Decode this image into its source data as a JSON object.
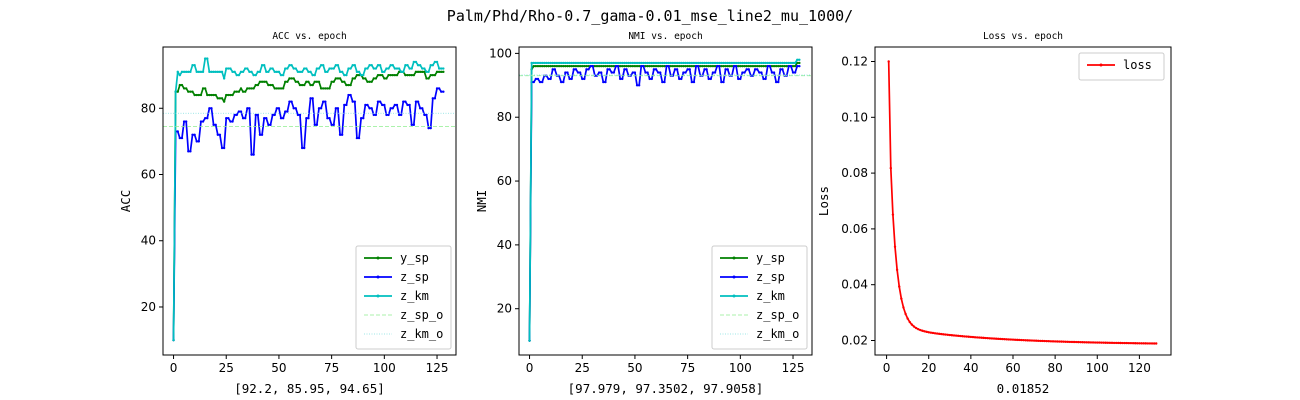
{
  "figure": {
    "suptitle": "Palm/Phd/Rho-0.7_gama-0.01_mse_line2_mu_1000/"
  },
  "colors": {
    "y_sp": "#008000",
    "z_sp": "#0000ff",
    "z_km": "#00bfbf",
    "z_sp_o": "#90ee90",
    "z_km_o": "#7fdfdf",
    "loss": "#ff0000"
  },
  "chart_data": [
    {
      "type": "line",
      "title": "ACC vs. epoch",
      "xlabel": "[92.2, 85.95, 94.65]",
      "ylabel": "ACC",
      "xlim": [
        -5,
        134
      ],
      "ylim": [
        5.5,
        98.5
      ],
      "xticks": [
        0,
        25,
        50,
        75,
        100,
        125
      ],
      "yticks": [
        20,
        40,
        60,
        80
      ],
      "legend_position": "lower-right",
      "grid": false,
      "x_start": 0,
      "series": [
        {
          "name": "y_sp",
          "key": "y_sp",
          "style": "solid-markers",
          "values": [
            10,
            85,
            85,
            87,
            87,
            86,
            86,
            85,
            85,
            85,
            84,
            84,
            84,
            84,
            86,
            86,
            84,
            84,
            84,
            84,
            84,
            83,
            83,
            83,
            82,
            84,
            84,
            84,
            84,
            85,
            85,
            85,
            86,
            85,
            85,
            86,
            86,
            86,
            86,
            87,
            87,
            88,
            88,
            88,
            88,
            87,
            87,
            87,
            86,
            86,
            86,
            86,
            86,
            88,
            88,
            89,
            89,
            89,
            88,
            88,
            87,
            87,
            87,
            88,
            88,
            87,
            87,
            88,
            88,
            88,
            86,
            86,
            86,
            86,
            86,
            88,
            88,
            89,
            89,
            89,
            88,
            88,
            87,
            87,
            87,
            89,
            89,
            90,
            90,
            90,
            89,
            89,
            88,
            88,
            88,
            89,
            89,
            90,
            90,
            90,
            89,
            89,
            90,
            90,
            90,
            90,
            90,
            91,
            91,
            91,
            90,
            90,
            90,
            90,
            90,
            91,
            91,
            91,
            91,
            91,
            89,
            89,
            90,
            90,
            90,
            91,
            91,
            91,
            91
          ]
        },
        {
          "name": "z_sp",
          "key": "z_sp",
          "style": "solid-markers",
          "values": [
            10,
            73,
            73,
            71,
            71,
            76,
            76,
            67,
            67,
            72,
            72,
            70,
            70,
            76,
            76,
            77,
            77,
            80,
            80,
            75,
            75,
            72,
            72,
            68,
            68,
            77,
            77,
            76,
            76,
            78,
            78,
            79,
            79,
            77,
            77,
            80,
            80,
            66,
            66,
            78,
            78,
            72,
            72,
            77,
            77,
            75,
            75,
            78,
            78,
            80,
            80,
            77,
            77,
            79,
            79,
            82,
            82,
            80,
            80,
            78,
            78,
            68,
            68,
            77,
            77,
            83,
            83,
            75,
            75,
            80,
            80,
            82,
            82,
            77,
            77,
            75,
            75,
            80,
            80,
            72,
            72,
            81,
            81,
            84,
            84,
            82,
            82,
            71,
            71,
            77,
            77,
            81,
            81,
            80,
            80,
            78,
            78,
            82,
            82,
            81,
            81,
            78,
            78,
            80,
            80,
            81,
            81,
            78,
            78,
            82,
            82,
            81,
            81,
            75,
            75,
            82,
            82,
            80,
            80,
            78,
            78,
            74,
            74,
            83,
            83,
            86,
            86,
            85,
            85
          ]
        },
        {
          "name": "z_km",
          "key": "z_km",
          "style": "solid-markers",
          "values": [
            10,
            85,
            91,
            90,
            91,
            91,
            91,
            91,
            91,
            93,
            93,
            91,
            91,
            91,
            91,
            95,
            95,
            91,
            91,
            91,
            91,
            91,
            91,
            91,
            89,
            92,
            92,
            92,
            91,
            91,
            90,
            90,
            91,
            91,
            92,
            92,
            91,
            91,
            90,
            90,
            91,
            91,
            93,
            93,
            91,
            91,
            92,
            92,
            91,
            91,
            91,
            90,
            90,
            92,
            92,
            93,
            93,
            92,
            92,
            91,
            91,
            91,
            92,
            92,
            91,
            91,
            90,
            90,
            92,
            92,
            93,
            93,
            91,
            91,
            92,
            92,
            92,
            93,
            93,
            91,
            91,
            90,
            90,
            92,
            92,
            93,
            93,
            91,
            91,
            90,
            90,
            92,
            92,
            93,
            93,
            92,
            92,
            93,
            93,
            91,
            91,
            92,
            92,
            93,
            93,
            92,
            92,
            92,
            91,
            91,
            93,
            93,
            92,
            92,
            94,
            94,
            93,
            93,
            92,
            92,
            91,
            91,
            93,
            93,
            94,
            94,
            92,
            92,
            92
          ]
        },
        {
          "name": "z_sp_o",
          "key": "z_sp_o",
          "style": "dashed",
          "constant": 74.5
        },
        {
          "name": "z_km_o",
          "key": "z_km_o",
          "style": "dotted",
          "constant": 78.5
        }
      ]
    },
    {
      "type": "line",
      "title": "NMI vs. epoch",
      "xlabel": "[97.979, 97.3502, 97.9058]",
      "ylabel": "NMI",
      "xlim": [
        -5,
        134
      ],
      "ylim": [
        5.5,
        102
      ],
      "xticks": [
        0,
        25,
        50,
        75,
        100,
        125
      ],
      "yticks": [
        20,
        40,
        60,
        80,
        100
      ],
      "legend_position": "lower-right",
      "grid": false,
      "x_start": 0,
      "series": [
        {
          "name": "y_sp",
          "key": "y_sp",
          "style": "solid-markers",
          "values": [
            10,
            95,
            96,
            96,
            96,
            96,
            96,
            96,
            96,
            96,
            96,
            96,
            96,
            96,
            96,
            96,
            96,
            96,
            96,
            96,
            96,
            96,
            96,
            96,
            96,
            96,
            96,
            96,
            96,
            96,
            96,
            96,
            96,
            96,
            96,
            96,
            96,
            96,
            96,
            96,
            96,
            96,
            96,
            96,
            96,
            96,
            96,
            96,
            96,
            96,
            96,
            96,
            96,
            96,
            96,
            96,
            96,
            96,
            96,
            96,
            96,
            96,
            96,
            96,
            96,
            96,
            96,
            96,
            96,
            96,
            96,
            96,
            96,
            96,
            96,
            96,
            96,
            96,
            96,
            96,
            96,
            96,
            96,
            96,
            96,
            96,
            96,
            96,
            96,
            96,
            96,
            96,
            96,
            96,
            96,
            96,
            96,
            96,
            96,
            96,
            96,
            96,
            96,
            96,
            96,
            96,
            96,
            96,
            96,
            96,
            96,
            96,
            96,
            96,
            96,
            96,
            96,
            96,
            96,
            96,
            96,
            96,
            96,
            96,
            96,
            96,
            96,
            97,
            97
          ]
        },
        {
          "name": "z_sp",
          "key": "z_sp",
          "style": "solid-markers",
          "values": [
            10,
            91,
            91,
            92,
            92,
            91,
            91,
            93,
            93,
            92,
            92,
            95,
            95,
            93,
            93,
            91,
            91,
            94,
            94,
            92,
            92,
            95,
            95,
            94,
            94,
            92,
            92,
            95,
            95,
            96,
            96,
            93,
            93,
            94,
            94,
            91,
            91,
            95,
            95,
            94,
            94,
            96,
            96,
            92,
            92,
            95,
            95,
            93,
            93,
            94,
            94,
            90,
            90,
            96,
            96,
            94,
            94,
            92,
            92,
            95,
            95,
            94,
            94,
            91,
            91,
            96,
            96,
            93,
            93,
            95,
            95,
            92,
            92,
            94,
            94,
            95,
            95,
            91,
            91,
            96,
            96,
            93,
            93,
            95,
            95,
            92,
            92,
            94,
            94,
            96,
            96,
            91,
            91,
            95,
            95,
            93,
            93,
            96,
            96,
            92,
            92,
            94,
            94,
            95,
            95,
            93,
            93,
            95,
            95,
            94,
            94,
            92,
            92,
            96,
            96,
            94,
            94,
            91,
            91,
            95,
            95,
            93,
            93,
            96,
            96,
            94,
            94,
            96,
            96
          ]
        },
        {
          "name": "z_km",
          "key": "z_km",
          "style": "solid-markers",
          "values": [
            10,
            97,
            97,
            97,
            97,
            97,
            97,
            97,
            97,
            97,
            97,
            97,
            97,
            97,
            97,
            97,
            97,
            97,
            97,
            97,
            97,
            97,
            97,
            97,
            97,
            97,
            97,
            97,
            97,
            97,
            97,
            97,
            97,
            97,
            97,
            97,
            97,
            97,
            97,
            97,
            97,
            97,
            97,
            97,
            97,
            97,
            97,
            97,
            97,
            97,
            97,
            97,
            97,
            97,
            97,
            97,
            97,
            97,
            97,
            97,
            97,
            97,
            97,
            97,
            97,
            97,
            97,
            97,
            97,
            97,
            97,
            97,
            97,
            97,
            97,
            97,
            97,
            97,
            97,
            97,
            97,
            97,
            97,
            97,
            97,
            97,
            97,
            97,
            97,
            97,
            97,
            97,
            97,
            97,
            97,
            97,
            97,
            97,
            97,
            97,
            97,
            97,
            97,
            97,
            97,
            97,
            97,
            97,
            97,
            97,
            97,
            97,
            97,
            97,
            97,
            97,
            97,
            97,
            97,
            97,
            97,
            97,
            97,
            97,
            97,
            97,
            97,
            98,
            98
          ]
        },
        {
          "name": "z_sp_o",
          "key": "z_sp_o",
          "style": "dashed",
          "constant": 93.0
        },
        {
          "name": "z_km_o",
          "key": "z_km_o",
          "style": "dotted",
          "constant": 93.2
        }
      ]
    },
    {
      "type": "line",
      "title": "Loss vs. epoch",
      "xlabel": "0.01852",
      "ylabel": "Loss",
      "xlim": [
        -5.5,
        135
      ],
      "ylim": [
        0.0148,
        0.1252
      ],
      "xticks": [
        0,
        20,
        40,
        60,
        80,
        100,
        120
      ],
      "yticks": [
        0.02,
        0.04,
        0.06,
        0.08,
        0.1,
        0.12
      ],
      "tick_labels_y": [
        "0.02",
        "0.04",
        "0.06",
        "0.08",
        "0.10",
        "0.12"
      ],
      "legend_position": "top-right",
      "grid": false,
      "x_start": 1,
      "series": [
        {
          "name": "loss",
          "key": "loss",
          "style": "solid-markers",
          "decay": {
            "count": 128,
            "start": 0.12,
            "asymptote": 0.01852,
            "fast_amp": 0.078,
            "fast_rate": 0.33,
            "slow_amp": 0.0065,
            "slow_rate": 0.022
          }
        }
      ]
    }
  ]
}
